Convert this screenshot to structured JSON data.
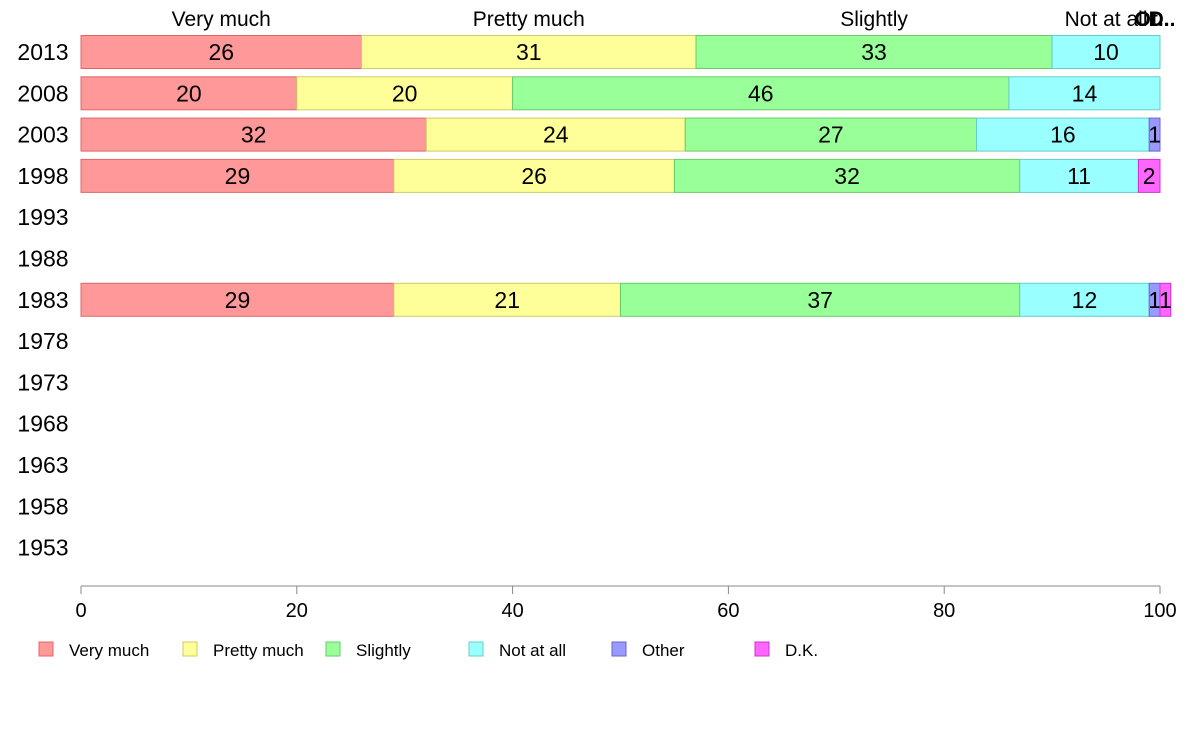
{
  "chart_data": {
    "type": "bar",
    "orientation": "horizontal",
    "stacked": true,
    "categories": [
      "2013",
      "2008",
      "2003",
      "1998",
      "1993",
      "1988",
      "1983",
      "1978",
      "1973",
      "1968",
      "1963",
      "1958",
      "1953"
    ],
    "xlim": [
      0,
      100
    ],
    "x_ticks": [
      "0",
      "20",
      "40",
      "60",
      "80",
      "100"
    ],
    "top_labels": [
      "Very much",
      "Pretty much",
      "Slightly",
      "Not at all",
      "Ot..",
      "D.."
    ],
    "legend_position": "bottom",
    "grid": false,
    "series": [
      {
        "name": "Very much",
        "color": "#FF9999",
        "stroke": "#E06666",
        "values": [
          26,
          20,
          32,
          29,
          null,
          null,
          29,
          null,
          null,
          null,
          null,
          null,
          null
        ]
      },
      {
        "name": "Pretty much",
        "color": "#FFFF99",
        "stroke": "#CCCC66",
        "values": [
          31,
          20,
          24,
          26,
          null,
          null,
          21,
          null,
          null,
          null,
          null,
          null,
          null
        ]
      },
      {
        "name": "Slightly",
        "color": "#99FF99",
        "stroke": "#66CC66",
        "values": [
          33,
          46,
          27,
          32,
          null,
          null,
          37,
          null,
          null,
          null,
          null,
          null,
          null
        ]
      },
      {
        "name": "Not at all",
        "color": "#99FFFF",
        "stroke": "#66CCCC",
        "values": [
          10,
          14,
          16,
          11,
          null,
          null,
          12,
          null,
          null,
          null,
          null,
          null,
          null
        ]
      },
      {
        "name": "Other",
        "color": "#9999FF",
        "stroke": "#6666CC",
        "values": [
          0,
          0,
          1,
          0,
          null,
          null,
          1,
          null,
          null,
          null,
          null,
          null,
          null
        ]
      },
      {
        "name": "D.K.",
        "color": "#FF66FF",
        "stroke": "#CC33CC",
        "values": [
          0,
          0,
          0,
          2,
          null,
          null,
          1,
          null,
          null,
          null,
          null,
          null,
          null
        ]
      }
    ]
  }
}
